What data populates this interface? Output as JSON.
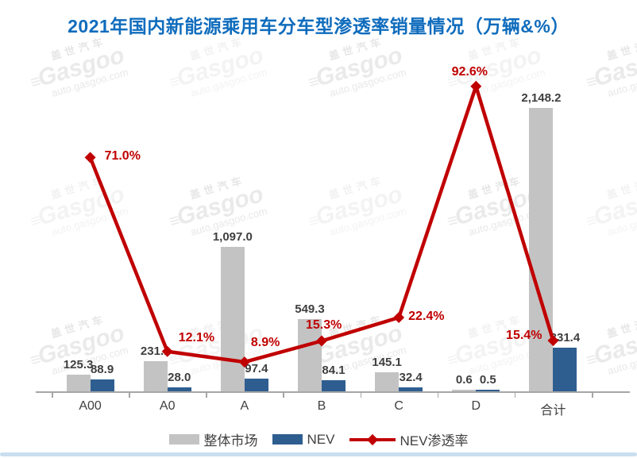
{
  "title": "2021年国内新能源乘用车分车型渗透率销量情况（万辆&%）",
  "watermark": {
    "cn": "盖世汽车",
    "logo_prefix": "≡",
    "logo": "Gasgoo",
    "url": "auto.gasgoo.com"
  },
  "legend": {
    "items": [
      {
        "label": "整体市场",
        "color": "#c3c3c3"
      },
      {
        "label": "NEV",
        "color": "#2e5e90"
      },
      {
        "label": "NEV渗透率",
        "color": "#c00000"
      }
    ]
  },
  "chart_data": {
    "type": "bar",
    "subtype": "bar+line combo",
    "title": "2021年国内新能源乘用车分车型渗透率销量情况（万辆&%）",
    "categories": [
      "A00",
      "A0",
      "A",
      "B",
      "C",
      "D",
      "合计"
    ],
    "series": [
      {
        "name": "整体市场",
        "kind": "bar",
        "color": "#c3c3c3",
        "values": [
          125.3,
          231.1,
          1097.0,
          549.3,
          145.1,
          0.6,
          2148.2
        ],
        "labels": [
          "125.3",
          "231.1",
          "1,097.0",
          "549.3",
          "145.1",
          "0.6",
          "2,148.2"
        ]
      },
      {
        "name": "NEV",
        "kind": "bar",
        "color": "#2e5e90",
        "values": [
          88.9,
          28.0,
          97.4,
          84.1,
          32.4,
          0.5,
          331.4
        ],
        "labels": [
          "88.9",
          "28.0",
          "97.4",
          "84.1",
          "32.4",
          "0.5",
          "331.4"
        ]
      },
      {
        "name": "NEV渗透率",
        "kind": "line",
        "axis": "right",
        "color": "#c00000",
        "values": [
          71.0,
          12.1,
          8.9,
          15.3,
          22.4,
          92.6,
          15.4
        ],
        "labels": [
          "71.0%",
          "12.1%",
          "8.9%",
          "15.3%",
          "22.4%",
          "92.6%",
          "15.4%"
        ]
      }
    ],
    "xlabel": "",
    "ylabel": "",
    "y_left_max": 2500,
    "y_right_range": [
      0,
      100
    ],
    "grid": false,
    "legend_position": "bottom"
  }
}
